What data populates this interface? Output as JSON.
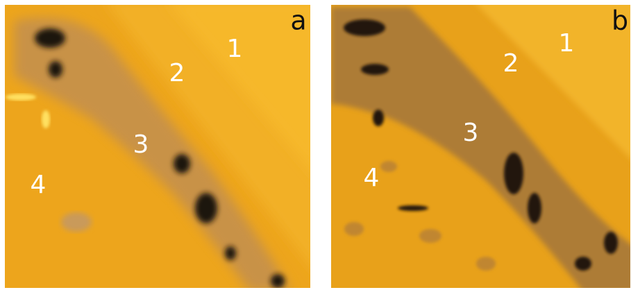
{
  "panels": [
    {
      "label": "a",
      "regions": [
        "1",
        "2",
        "3",
        "4"
      ]
    },
    {
      "label": "b",
      "regions": [
        "1",
        "2",
        "3",
        "4"
      ]
    }
  ]
}
